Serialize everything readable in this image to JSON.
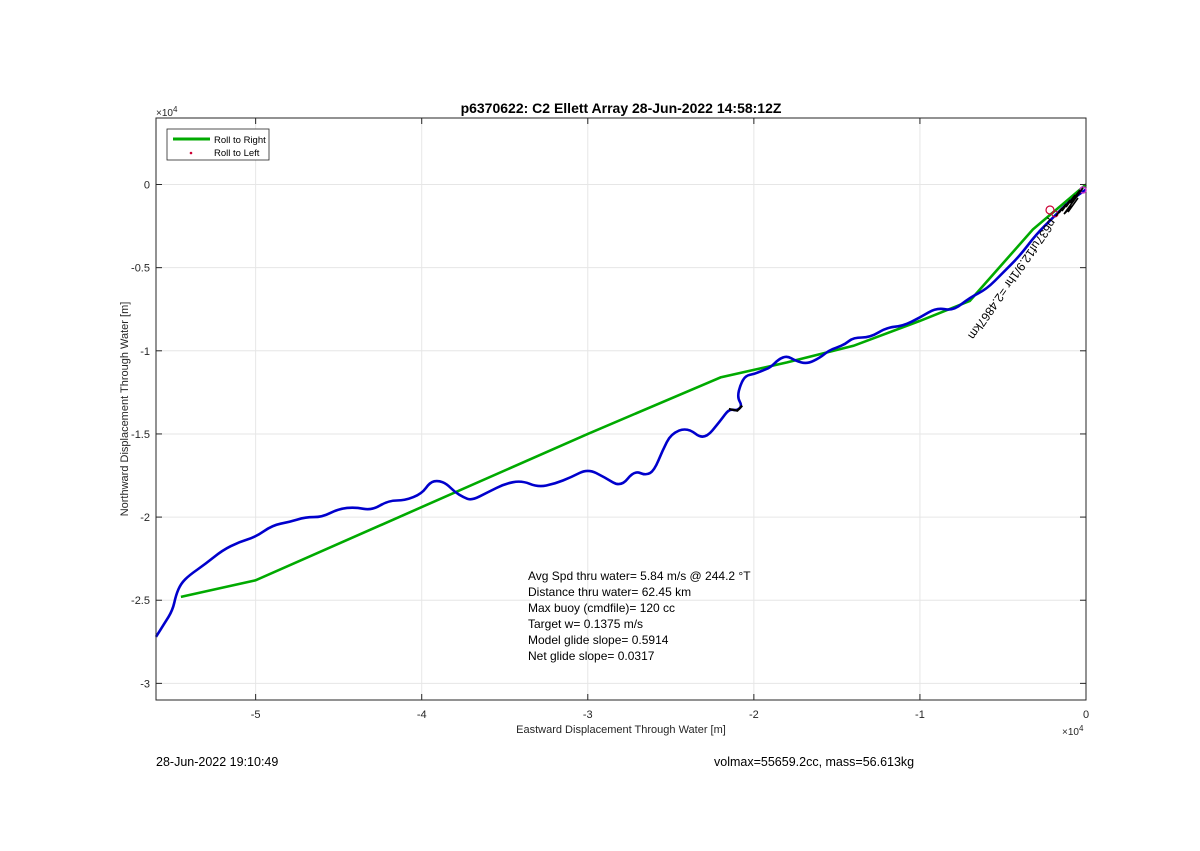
{
  "chart_data": {
    "type": "line",
    "title": "p6370622: C2 Ellett Array 28-Jun-2022 14:58:12Z",
    "xlabel": "Eastward Displacement Through Water [m]",
    "ylabel": "Northward Displacement Through Water [m]",
    "x_exponent_label": "×10",
    "x_exponent_power": "4",
    "y_exponent_label": "×10",
    "y_exponent_power": "4",
    "xlim": [
      -5.6,
      0
    ],
    "ylim": [
      -3.1,
      0.4
    ],
    "x_ticks": [
      -5,
      -4,
      -3,
      -2,
      -1,
      0
    ],
    "y_ticks": [
      0,
      -0.5,
      -1,
      -1.5,
      -2,
      -2.5,
      -3
    ],
    "x_tick_labels": [
      "-5",
      "-4",
      "-3",
      "-2",
      "-1",
      "0"
    ],
    "y_tick_labels": [
      "0",
      "-0.5",
      "-1",
      "-1.5",
      "-2",
      "-2.5",
      "-3"
    ],
    "grid": true,
    "legend_position": "top-left",
    "legend": [
      {
        "label": "Roll to Right",
        "color": "#00aa00",
        "style": "line"
      },
      {
        "label": "Roll to Left",
        "color": "#cc0033",
        "style": "marker"
      }
    ],
    "series": [
      {
        "name": "Roll to Right",
        "color": "#00aa00",
        "x": [
          0,
          -0.32,
          -0.7,
          -1.0,
          -1.4,
          -1.8,
          -2.2,
          -3.0,
          -4.0,
          -5.0,
          -5.45
        ],
        "y": [
          0,
          -0.27,
          -0.7,
          -0.82,
          -0.97,
          -1.07,
          -1.16,
          -1.5,
          -1.94,
          -2.38,
          -2.48
        ]
      },
      {
        "name": "",
        "color": "#0000cc",
        "x": [
          0,
          -0.1,
          -0.2,
          -0.3,
          -0.4,
          -0.5,
          -0.6,
          -0.7,
          -0.8,
          -0.9,
          -1.0,
          -1.1,
          -1.2,
          -1.3,
          -1.4,
          -1.45,
          -1.5,
          -1.55,
          -1.6,
          -1.68,
          -1.75,
          -1.8,
          -1.85,
          -1.9,
          -1.95,
          -2.0,
          -2.05,
          -2.08,
          -2.1,
          -2.07,
          -2.1,
          -2.15,
          -2.2,
          -2.3,
          -2.4,
          -2.5,
          -2.55,
          -2.6,
          -2.65,
          -2.72,
          -2.8,
          -2.9,
          -3.0,
          -3.1,
          -3.2,
          -3.3,
          -3.4,
          -3.5,
          -3.6,
          -3.7,
          -3.75,
          -3.8,
          -3.85,
          -3.9,
          -3.95,
          -4.0,
          -4.1,
          -4.2,
          -4.3,
          -4.4,
          -4.5,
          -4.6,
          -4.7,
          -4.8,
          -4.9,
          -5.0,
          -5.1,
          -5.2,
          -5.3,
          -5.4,
          -5.45,
          -5.48,
          -5.5,
          -5.55,
          -5.6
        ],
        "y": [
          -0.03,
          -0.1,
          -0.2,
          -0.3,
          -0.43,
          -0.53,
          -0.63,
          -0.68,
          -0.76,
          -0.74,
          -0.8,
          -0.85,
          -0.86,
          -0.92,
          -0.92,
          -0.96,
          -0.98,
          -1.0,
          -1.04,
          -1.08,
          -1.06,
          -1.03,
          -1.05,
          -1.1,
          -1.12,
          -1.14,
          -1.15,
          -1.2,
          -1.28,
          -1.33,
          -1.36,
          -1.35,
          -1.42,
          -1.54,
          -1.46,
          -1.5,
          -1.6,
          -1.72,
          -1.75,
          -1.72,
          -1.82,
          -1.76,
          -1.71,
          -1.76,
          -1.8,
          -1.82,
          -1.78,
          -1.8,
          -1.85,
          -1.9,
          -1.88,
          -1.85,
          -1.8,
          -1.78,
          -1.79,
          -1.86,
          -1.9,
          -1.9,
          -1.96,
          -1.94,
          -1.95,
          -2.0,
          -2.0,
          -2.03,
          -2.05,
          -2.12,
          -2.15,
          -2.2,
          -2.28,
          -2.35,
          -2.4,
          -2.47,
          -2.56,
          -2.64,
          -2.72
        ]
      }
    ],
    "annotation_lines": [
      "Avg Spd thru water=  5.84 m/s @ 244.2 °T",
      "Distance thru water= 62.45 km",
      "Max buoy (cmdfile)= 120 cc",
      "Target w= 0.1375 m/s",
      "Model glide slope= 0.5914",
      "Net glide slope= 0.0317"
    ],
    "rotated_label": "p637uf12.9/1hr =2.4867km"
  },
  "footer": {
    "timestamp": "28-Jun-2022 19:10:49",
    "volmax_mass": "volmax=55659.2cc, mass=56.613kg"
  }
}
